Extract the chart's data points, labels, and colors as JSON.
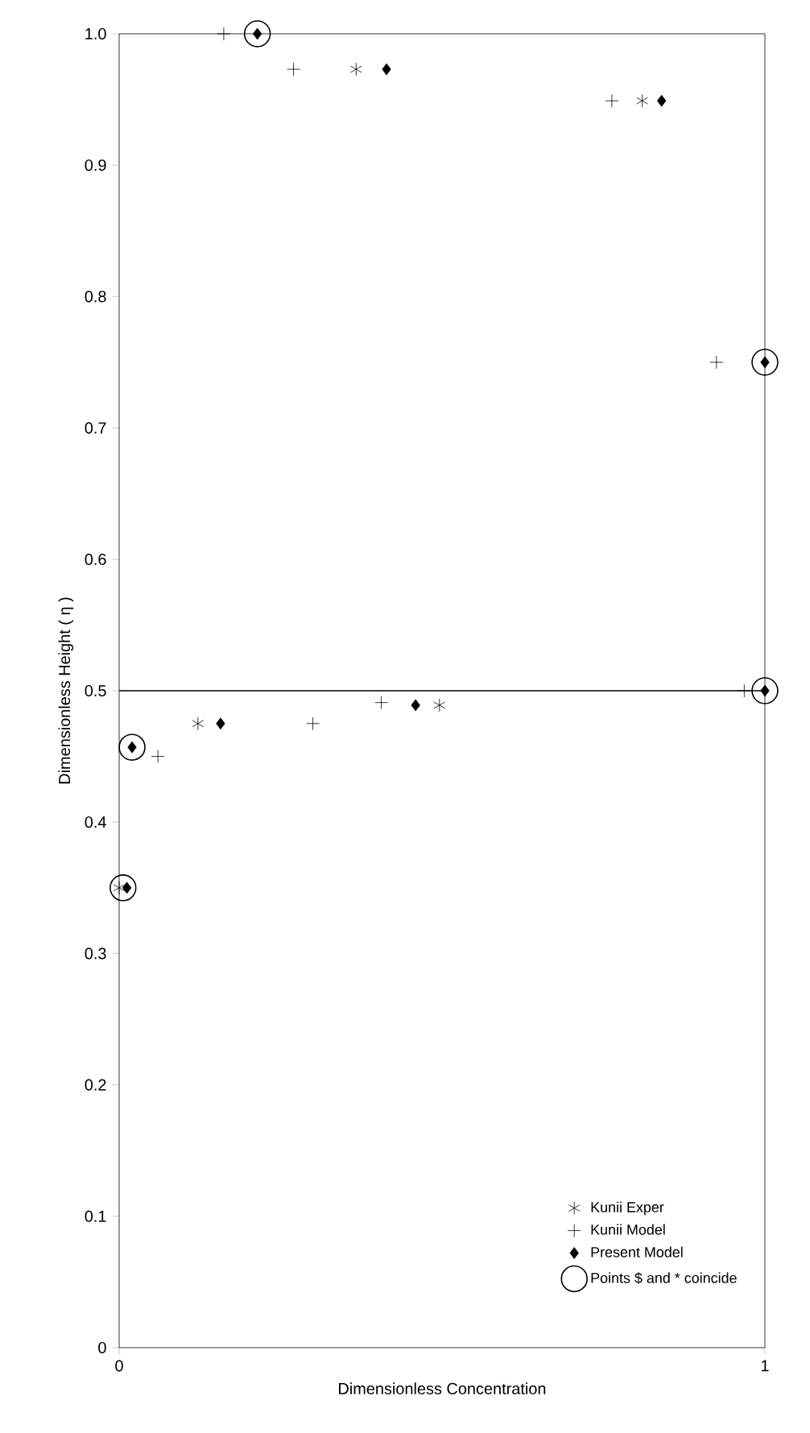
{
  "chart_data": {
    "type": "scatter",
    "xlabel": "Dimensionless Concentration",
    "ylabel": "Dimensionless Height ( η )",
    "xlim": [
      0,
      1
    ],
    "ylim": [
      0,
      1
    ],
    "xticks": [
      0,
      1
    ],
    "yticks": [
      0,
      0.1,
      0.2,
      0.3,
      0.4,
      0.5,
      0.6,
      0.7,
      0.8,
      0.9,
      {
        "value": 1,
        "label": "1.0"
      }
    ],
    "legend": "bottom right",
    "grid": false,
    "ref_lines": [
      {
        "axis": "y",
        "value": 0.5,
        "color": "#000000"
      }
    ],
    "series": [
      {
        "name": "Kunii Exper",
        "color": "#000000",
        "x": [
          0.367,
          0.81,
          0.122,
          0.496,
          0.0
        ],
        "values": [
          0.973,
          0.949,
          0.475,
          0.489,
          0.35
        ]
      },
      {
        "name": "Kunii Model",
        "color": "#000000",
        "marker": "cross",
        "x": [
          0.162,
          0.27,
          0.763,
          0.925,
          0.968,
          0.06,
          0.3,
          0.406
        ],
        "values": [
          1.0,
          0.973,
          0.949,
          0.75,
          0.5,
          0.45,
          0.475,
          0.491
        ]
      },
      {
        "name": "Present Model",
        "color": "#000000",
        "marker": "diamond",
        "x": [
          0.214,
          0.414,
          0.84,
          1.0,
          1.0,
          0.02,
          0.157,
          0.459,
          0.012
        ],
        "values": [
          1.0,
          0.973,
          0.949,
          0.75,
          0.5,
          0.457,
          0.475,
          0.489,
          0.35
        ]
      },
      {
        "name": "Points $ and * coincide",
        "color": "#000000",
        "marker": "circle",
        "x": [
          0.214,
          1.0,
          1.0,
          0.02,
          0.006
        ],
        "values": [
          1.0,
          0.75,
          0.5,
          0.457,
          0.35
        ]
      }
    ]
  }
}
